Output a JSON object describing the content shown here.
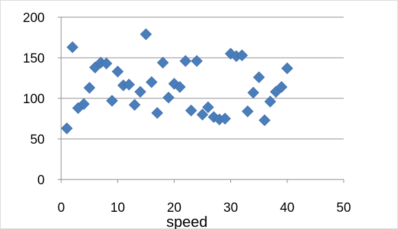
{
  "chart_data": {
    "type": "scatter",
    "title": "",
    "xlabel": "speed",
    "ylabel": "",
    "xlim": [
      0,
      50
    ],
    "ylim": [
      0,
      200
    ],
    "x_ticks": [
      0,
      10,
      20,
      30,
      40,
      50
    ],
    "y_ticks": [
      0,
      50,
      100,
      150,
      200
    ],
    "grid": "horizontal major",
    "legend": "none",
    "marker": "diamond",
    "series": [
      {
        "color": "#4a7ebb",
        "points": [
          [
            1,
            63
          ],
          [
            2,
            163
          ],
          [
            3,
            88
          ],
          [
            4,
            93
          ],
          [
            5,
            113
          ],
          [
            6,
            138
          ],
          [
            7,
            144
          ],
          [
            8,
            143
          ],
          [
            9,
            97
          ],
          [
            10,
            133
          ],
          [
            11,
            116
          ],
          [
            12,
            117
          ],
          [
            13,
            92
          ],
          [
            14,
            108
          ],
          [
            15,
            179
          ],
          [
            16,
            120
          ],
          [
            17,
            82
          ],
          [
            18,
            144
          ],
          [
            19,
            101
          ],
          [
            20,
            118
          ],
          [
            21,
            114
          ],
          [
            22,
            146
          ],
          [
            23,
            85
          ],
          [
            24,
            146
          ],
          [
            25,
            80
          ],
          [
            26,
            89
          ],
          [
            27,
            77
          ],
          [
            28,
            74
          ],
          [
            29,
            75
          ],
          [
            30,
            155
          ],
          [
            31,
            152
          ],
          [
            32,
            153
          ],
          [
            33,
            84
          ],
          [
            34,
            107
          ],
          [
            35,
            126
          ],
          [
            36,
            73
          ],
          [
            37,
            96
          ],
          [
            38,
            108
          ],
          [
            39,
            114
          ],
          [
            40,
            137
          ]
        ]
      }
    ]
  }
}
